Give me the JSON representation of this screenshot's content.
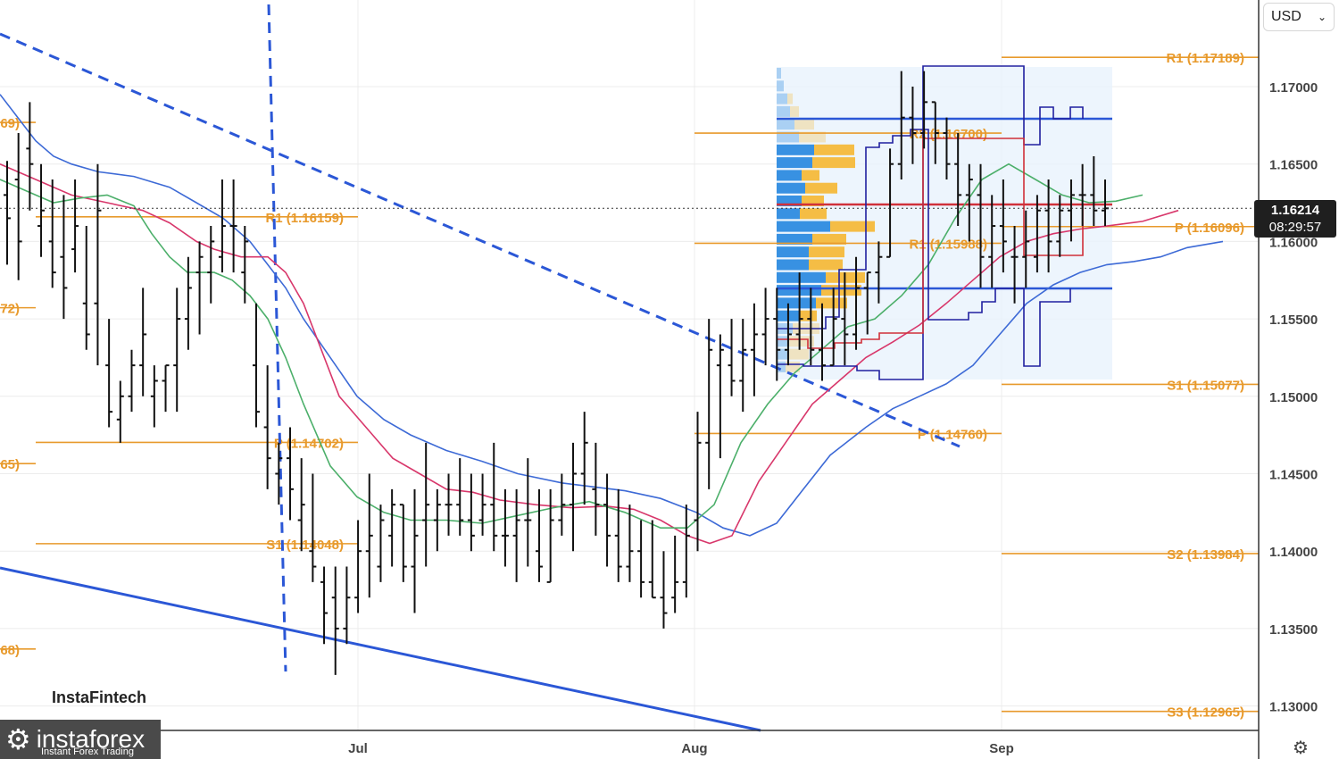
{
  "currency_selector": {
    "value": "USD",
    "chevron_icon": "chevron-down-icon"
  },
  "last_price": {
    "value": "1.16214",
    "countdown": "08:29:57"
  },
  "brand": {
    "instafintech": "InstaFintech",
    "logo_name": "instaforex",
    "logo_tagline": "Instant Forex Trading"
  },
  "settings_icon": "gear-icon",
  "colors": {
    "pivot": "#e89a2c",
    "blue_line": "#2b57d6",
    "ma_blue": "#3d6ad6",
    "ma_red": "#d8376b",
    "ma_green": "#4caf6a",
    "volume_blue": "#2e8be0",
    "volume_yellow": "#f5b93b",
    "navy": "#2020a0",
    "red_step": "#d0303a"
  },
  "chart_data": {
    "type": "line",
    "ylim": [
      1.1275,
      1.1735
    ],
    "y_ticks": [
      "1.17000",
      "1.16500",
      "1.16000",
      "1.15500",
      "1.15000",
      "1.14500",
      "1.14000",
      "1.13500",
      "1.13000"
    ],
    "x_ticks": [
      "Jul",
      "Aug",
      "Sep"
    ],
    "pivot_levels": [
      {
        "label": "R1 (1.17189)",
        "value": 1.17189,
        "period": "Sep"
      },
      {
        "label": "R2 (1.16700)",
        "value": 1.167,
        "period": "Aug"
      },
      {
        "label": "R1 (1.16159)",
        "value": 1.16159,
        "period": "Jul"
      },
      {
        "label": "P (1.16096)",
        "value": 1.16096,
        "period": "Sep"
      },
      {
        "label": "R1 (1.15988)",
        "value": 1.15988,
        "period": "Aug"
      },
      {
        "label": "S1 (1.15077)",
        "value": 1.15077,
        "period": "Sep"
      },
      {
        "label": "P (1.14760)",
        "value": 1.1476,
        "period": "Aug"
      },
      {
        "label": "P (1.14702)",
        "value": 1.14702,
        "period": "Jul"
      },
      {
        "label": "S1 (1.14048)",
        "value": 1.14048,
        "period": "Jul"
      },
      {
        "label": "S2 (1.13984)",
        "value": 1.13984,
        "period": "Sep"
      },
      {
        "label": "S3 (1.12965)",
        "value": 1.12965,
        "period": "Sep"
      },
      {
        "label": "69)",
        "value": 1.16769,
        "period": "Jun"
      },
      {
        "label": "72)",
        "value": 1.15572,
        "period": "Jun"
      },
      {
        "label": "65)",
        "value": 1.14565,
        "period": "Jun"
      },
      {
        "label": "68)",
        "value": 1.13368,
        "period": "Jun"
      }
    ],
    "last_price": 1.16214,
    "bars": [
      [
        1.1652,
        1.1585,
        1.163,
        1.1615
      ],
      [
        1.167,
        1.1575,
        1.164,
        1.16
      ],
      [
        1.169,
        1.162,
        1.166,
        1.165
      ],
      [
        1.165,
        1.159,
        1.161,
        1.162
      ],
      [
        1.164,
        1.157,
        1.16,
        1.158
      ],
      [
        1.163,
        1.155,
        1.159,
        1.157
      ],
      [
        1.164,
        1.158,
        1.1595,
        1.161
      ],
      [
        1.161,
        1.153,
        1.156,
        1.154
      ],
      [
        1.165,
        1.152,
        1.156,
        1.162
      ],
      [
        1.155,
        1.148,
        1.152,
        1.149
      ],
      [
        1.151,
        1.147,
        1.1485,
        1.15
      ],
      [
        1.153,
        1.149,
        1.15,
        1.152
      ],
      [
        1.157,
        1.15,
        1.152,
        1.154
      ],
      [
        1.152,
        1.148,
        1.15,
        1.151
      ],
      [
        1.152,
        1.149,
        1.151,
        1.152
      ],
      [
        1.157,
        1.149,
        1.152,
        1.155
      ],
      [
        1.159,
        1.153,
        1.155,
        1.157
      ],
      [
        1.16,
        1.154,
        1.158,
        1.159
      ],
      [
        1.161,
        1.156,
        1.158,
        1.16
      ],
      [
        1.164,
        1.158,
        1.159,
        1.161
      ],
      [
        1.164,
        1.158,
        1.161,
        1.161
      ],
      [
        1.161,
        1.156,
        1.158,
        1.16
      ],
      [
        1.156,
        1.148,
        1.152,
        1.149
      ],
      [
        1.152,
        1.144,
        1.148,
        1.146
      ],
      [
        1.147,
        1.143,
        1.145,
        1.146
      ],
      [
        1.148,
        1.142,
        1.146,
        1.144
      ],
      [
        1.146,
        1.14,
        1.142,
        1.143
      ],
      [
        1.145,
        1.138,
        1.14,
        1.139
      ],
      [
        1.139,
        1.134,
        1.138,
        1.136
      ],
      [
        1.139,
        1.132,
        1.137,
        1.135
      ],
      [
        1.139,
        1.134,
        1.135,
        1.137
      ],
      [
        1.142,
        1.136,
        1.137,
        1.14
      ],
      [
        1.145,
        1.137,
        1.14,
        1.141
      ],
      [
        1.143,
        1.138,
        1.139,
        1.142
      ],
      [
        1.144,
        1.139,
        1.141,
        1.143
      ],
      [
        1.143,
        1.138,
        1.143,
        1.139
      ],
      [
        1.144,
        1.136,
        1.139,
        1.141
      ],
      [
        1.147,
        1.139,
        1.142,
        1.143
      ],
      [
        1.144,
        1.14,
        1.142,
        1.143
      ],
      [
        1.145,
        1.141,
        1.143,
        1.143
      ],
      [
        1.146,
        1.141,
        1.143,
        1.142
      ],
      [
        1.145,
        1.14,
        1.142,
        1.141
      ],
      [
        1.145,
        1.141,
        1.142,
        1.143
      ],
      [
        1.147,
        1.14,
        1.143,
        1.141
      ],
      [
        1.144,
        1.139,
        1.141,
        1.141
      ],
      [
        1.144,
        1.138,
        1.141,
        1.142
      ],
      [
        1.146,
        1.139,
        1.142,
        1.142
      ],
      [
        1.144,
        1.138,
        1.14,
        1.139
      ],
      [
        1.144,
        1.138,
        1.138,
        1.142
      ],
      [
        1.145,
        1.141,
        1.142,
        1.143
      ],
      [
        1.147,
        1.14,
        1.143,
        1.145
      ],
      [
        1.149,
        1.143,
        1.145,
        1.147
      ],
      [
        1.147,
        1.141,
        1.144,
        1.143
      ],
      [
        1.145,
        1.139,
        1.143,
        1.141
      ],
      [
        1.144,
        1.138,
        1.141,
        1.139
      ],
      [
        1.143,
        1.138,
        1.139,
        1.14
      ],
      [
        1.142,
        1.137,
        1.14,
        1.138
      ],
      [
        1.142,
        1.137,
        1.138,
        1.137
      ],
      [
        1.14,
        1.135,
        1.137,
        1.136
      ],
      [
        1.141,
        1.136,
        1.137,
        1.138
      ],
      [
        1.143,
        1.137,
        1.138,
        1.141
      ],
      [
        1.149,
        1.14,
        1.142,
        1.147
      ],
      [
        1.155,
        1.144,
        1.147,
        1.153
      ],
      [
        1.154,
        1.146,
        1.152,
        1.153
      ],
      [
        1.155,
        1.15,
        1.152,
        1.151
      ],
      [
        1.155,
        1.149,
        1.151,
        1.153
      ],
      [
        1.156,
        1.15,
        1.153,
        1.154
      ],
      [
        1.157,
        1.152,
        1.154,
        1.155
      ],
      [
        1.157,
        1.151,
        1.155,
        1.153
      ],
      [
        1.156,
        1.152,
        1.153,
        1.154
      ],
      [
        1.158,
        1.153,
        1.154,
        1.155
      ],
      [
        1.157,
        1.152,
        1.155,
        1.153
      ],
      [
        1.156,
        1.151,
        1.153,
        1.152
      ],
      [
        1.157,
        1.152,
        1.152,
        1.155
      ],
      [
        1.158,
        1.152,
        1.155,
        1.154
      ],
      [
        1.159,
        1.153,
        1.154,
        1.157
      ],
      [
        1.158,
        1.154,
        1.157,
        1.158
      ],
      [
        1.16,
        1.156,
        1.158,
        1.159
      ],
      [
        1.166,
        1.159,
        1.159,
        1.165
      ],
      [
        1.171,
        1.164,
        1.165,
        1.168
      ],
      [
        1.17,
        1.165,
        1.168,
        1.167
      ],
      [
        1.171,
        1.166,
        1.167,
        1.169
      ],
      [
        1.169,
        1.165,
        1.169,
        1.167
      ],
      [
        1.168,
        1.164,
        1.167,
        1.165
      ],
      [
        1.167,
        1.161,
        1.165,
        1.163
      ],
      [
        1.165,
        1.16,
        1.163,
        1.164
      ],
      [
        1.165,
        1.157,
        1.163,
        1.159
      ],
      [
        1.163,
        1.157,
        1.159,
        1.161
      ],
      [
        1.164,
        1.158,
        1.161,
        1.16
      ],
      [
        1.161,
        1.156,
        1.159,
        1.159
      ],
      [
        1.162,
        1.157,
        1.159,
        1.16
      ],
      [
        1.163,
        1.158,
        1.159,
        1.162
      ],
      [
        1.164,
        1.158,
        1.162,
        1.16
      ],
      [
        1.163,
        1.159,
        1.16,
        1.162
      ],
      [
        1.164,
        1.16,
        1.162,
        1.163
      ],
      [
        1.165,
        1.161,
        1.163,
        1.163
      ],
      [
        1.1655,
        1.161,
        1.163,
        1.162
      ],
      [
        1.164,
        1.161,
        1.162,
        1.16214
      ]
    ],
    "ma_series": [
      {
        "color": "ma_blue",
        "values": [
          [
            0,
            1.1695
          ],
          [
            20,
            1.168
          ],
          [
            40,
            1.1665
          ],
          [
            60,
            1.1655
          ],
          [
            80,
            1.165
          ],
          [
            110,
            1.1645
          ],
          [
            150,
            1.1642
          ],
          [
            190,
            1.1635
          ],
          [
            220,
            1.1625
          ],
          [
            250,
            1.1615
          ],
          [
            280,
            1.16
          ],
          [
            300,
            1.1585
          ],
          [
            320,
            1.157
          ],
          [
            340,
            1.155
          ],
          [
            370,
            1.1525
          ],
          [
            400,
            1.15
          ],
          [
            430,
            1.1485
          ],
          [
            460,
            1.1475
          ],
          [
            500,
            1.1465
          ],
          [
            540,
            1.1458
          ],
          [
            580,
            1.145
          ],
          [
            630,
            1.1444
          ],
          [
            700,
            1.1439
          ],
          [
            740,
            1.1434
          ],
          [
            780,
            1.1425
          ],
          [
            810,
            1.1415
          ],
          [
            840,
            1.141
          ],
          [
            870,
            1.1418
          ],
          [
            900,
            1.144
          ],
          [
            930,
            1.1462
          ],
          [
            970,
            1.148
          ],
          [
            1000,
            1.1492
          ],
          [
            1030,
            1.15
          ],
          [
            1060,
            1.1508
          ],
          [
            1090,
            1.152
          ],
          [
            1120,
            1.154
          ],
          [
            1150,
            1.156
          ],
          [
            1180,
            1.1572
          ],
          [
            1210,
            1.158
          ],
          [
            1240,
            1.1585
          ],
          [
            1270,
            1.1587
          ],
          [
            1300,
            1.159
          ],
          [
            1330,
            1.1596
          ],
          [
            1370,
            1.16
          ]
        ]
      },
      {
        "color": "ma_red",
        "values": [
          [
            0,
            1.165
          ],
          [
            40,
            1.164
          ],
          [
            80,
            1.163
          ],
          [
            120,
            1.1625
          ],
          [
            160,
            1.162
          ],
          [
            190,
            1.1612
          ],
          [
            220,
            1.16
          ],
          [
            240,
            1.1595
          ],
          [
            270,
            1.159
          ],
          [
            300,
            1.159
          ],
          [
            320,
            1.158
          ],
          [
            340,
            1.156
          ],
          [
            380,
            1.15
          ],
          [
            410,
            1.148
          ],
          [
            440,
            1.146
          ],
          [
            470,
            1.145
          ],
          [
            500,
            1.144
          ],
          [
            530,
            1.1438
          ],
          [
            560,
            1.1433
          ],
          [
            600,
            1.143
          ],
          [
            640,
            1.1428
          ],
          [
            680,
            1.1429
          ],
          [
            710,
            1.1427
          ],
          [
            740,
            1.142
          ],
          [
            770,
            1.141
          ],
          [
            795,
            1.1405
          ],
          [
            820,
            1.141
          ],
          [
            850,
            1.1445
          ],
          [
            880,
            1.147
          ],
          [
            910,
            1.1495
          ],
          [
            940,
            1.151
          ],
          [
            970,
            1.1525
          ],
          [
            1000,
            1.1535
          ],
          [
            1030,
            1.1546
          ],
          [
            1060,
            1.156
          ],
          [
            1090,
            1.1575
          ],
          [
            1120,
            1.159
          ],
          [
            1150,
            1.16
          ],
          [
            1180,
            1.1605
          ],
          [
            1210,
            1.1608
          ],
          [
            1240,
            1.161
          ],
          [
            1280,
            1.1613
          ],
          [
            1320,
            1.162
          ]
        ]
      },
      {
        "color": "ma_green",
        "values": [
          [
            0,
            1.164
          ],
          [
            40,
            1.163
          ],
          [
            60,
            1.1625
          ],
          [
            90,
            1.1628
          ],
          [
            120,
            1.163
          ],
          [
            150,
            1.1623
          ],
          [
            170,
            1.1605
          ],
          [
            190,
            1.159
          ],
          [
            210,
            1.158
          ],
          [
            240,
            1.158
          ],
          [
            260,
            1.1575
          ],
          [
            280,
            1.1565
          ],
          [
            300,
            1.155
          ],
          [
            320,
            1.1525
          ],
          [
            340,
            1.1495
          ],
          [
            370,
            1.1455
          ],
          [
            400,
            1.1435
          ],
          [
            430,
            1.1425
          ],
          [
            460,
            1.142
          ],
          [
            500,
            1.142
          ],
          [
            540,
            1.1418
          ],
          [
            580,
            1.1423
          ],
          [
            620,
            1.1428
          ],
          [
            660,
            1.1432
          ],
          [
            700,
            1.1425
          ],
          [
            740,
            1.1415
          ],
          [
            770,
            1.1415
          ],
          [
            800,
            1.143
          ],
          [
            830,
            1.147
          ],
          [
            860,
            1.1495
          ],
          [
            890,
            1.1515
          ],
          [
            920,
            1.153
          ],
          [
            950,
            1.1545
          ],
          [
            980,
            1.155
          ],
          [
            1010,
            1.1565
          ],
          [
            1040,
            1.1585
          ],
          [
            1070,
            1.1615
          ],
          [
            1100,
            1.164
          ],
          [
            1130,
            1.165
          ],
          [
            1160,
            1.164
          ],
          [
            1190,
            1.163
          ],
          [
            1220,
            1.1625
          ],
          [
            1250,
            1.1626
          ],
          [
            1280,
            1.163
          ]
        ]
      }
    ]
  }
}
